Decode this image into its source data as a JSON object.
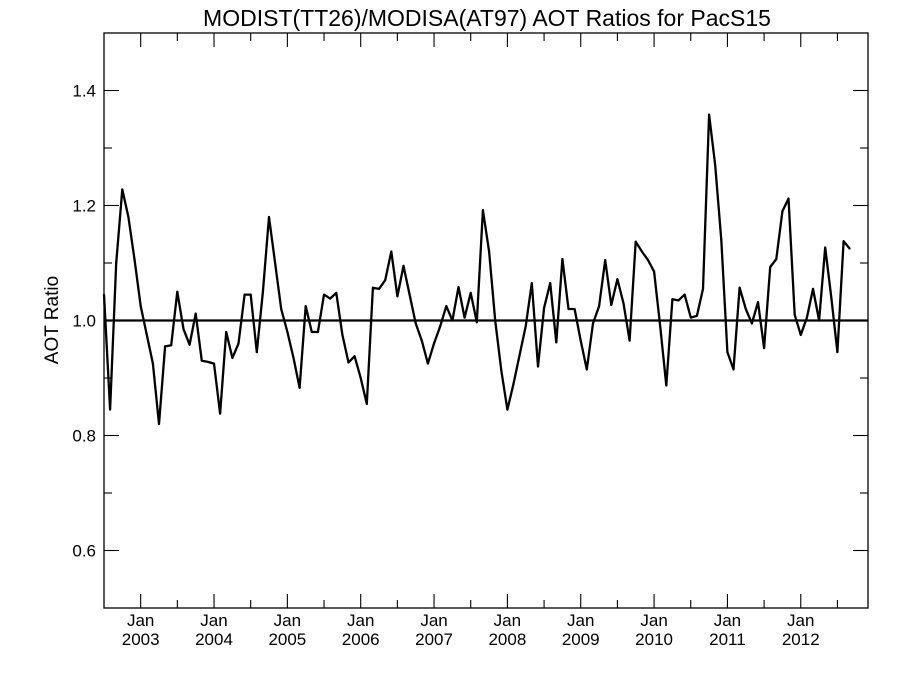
{
  "chart_data": {
    "type": "line",
    "title": "MODIST(TT26)/MODISA(AT97)  AOT Ratios for PacS15",
    "xlabel": "",
    "ylabel": "AOT Ratio",
    "x_start": "2002-07",
    "xlim": [
      "2002-07",
      "2012-12"
    ],
    "ylim": [
      0.5,
      1.5
    ],
    "y_ticks": [
      0.6,
      0.8,
      1.0,
      1.2,
      1.4
    ],
    "y_tick_labels": [
      "0.6",
      "0.8",
      "1.0",
      "1.2",
      "1.4"
    ],
    "x_ticks": [
      {
        "month": "Jan",
        "year": "2003",
        "date": "2003-01"
      },
      {
        "month": "Jan",
        "year": "2004",
        "date": "2004-01"
      },
      {
        "month": "Jan",
        "year": "2005",
        "date": "2005-01"
      },
      {
        "month": "Jan",
        "year": "2006",
        "date": "2006-01"
      },
      {
        "month": "Jan",
        "year": "2007",
        "date": "2007-01"
      },
      {
        "month": "Jan",
        "year": "2008",
        "date": "2008-01"
      },
      {
        "month": "Jan",
        "year": "2009",
        "date": "2009-01"
      },
      {
        "month": "Jan",
        "year": "2010",
        "date": "2010-01"
      },
      {
        "month": "Jan",
        "year": "2011",
        "date": "2011-01"
      },
      {
        "month": "Jan",
        "year": "2012",
        "date": "2012-01"
      }
    ],
    "reference_line": 1.0,
    "grid": false,
    "series": [
      {
        "values": [
          1.045,
          0.845,
          1.1,
          1.228,
          1.18,
          1.105,
          1.025,
          0.975,
          0.925,
          0.82,
          0.955,
          0.957,
          1.05,
          0.985,
          0.958,
          1.012,
          0.93,
          0.928,
          0.925,
          0.838,
          0.98,
          0.935,
          0.96,
          1.045,
          1.045,
          0.945,
          1.05,
          1.18,
          1.1,
          1.02,
          0.98,
          0.935,
          0.883,
          1.025,
          0.98,
          0.98,
          1.045,
          1.038,
          1.048,
          0.975,
          0.927,
          0.938,
          0.9,
          0.855,
          1.057,
          1.055,
          1.07,
          1.12,
          1.042,
          1.095,
          1.045,
          0.995,
          0.965,
          0.925,
          0.96,
          0.99,
          1.025,
          1.0,
          1.058,
          1.005,
          1.048,
          0.997,
          1.192,
          1.12,
          1.0,
          0.913,
          0.845,
          0.89,
          0.94,
          0.99,
          1.065,
          0.92,
          1.022,
          1.065,
          0.962,
          1.107,
          1.02,
          1.02,
          0.965,
          0.915,
          0.995,
          1.025,
          1.105,
          1.027,
          1.072,
          1.03,
          0.965,
          1.137,
          1.12,
          1.105,
          1.085,
          0.99,
          0.887,
          1.037,
          1.035,
          1.045,
          1.005,
          1.008,
          1.055,
          1.358,
          1.27,
          1.14,
          0.945,
          0.915,
          1.057,
          1.02,
          0.995,
          1.032,
          0.952,
          1.093,
          1.107,
          1.19,
          1.212,
          1.01,
          0.975,
          1.005,
          1.055,
          1.0,
          1.127,
          1.04,
          0.945,
          1.138,
          1.125
        ]
      }
    ]
  }
}
